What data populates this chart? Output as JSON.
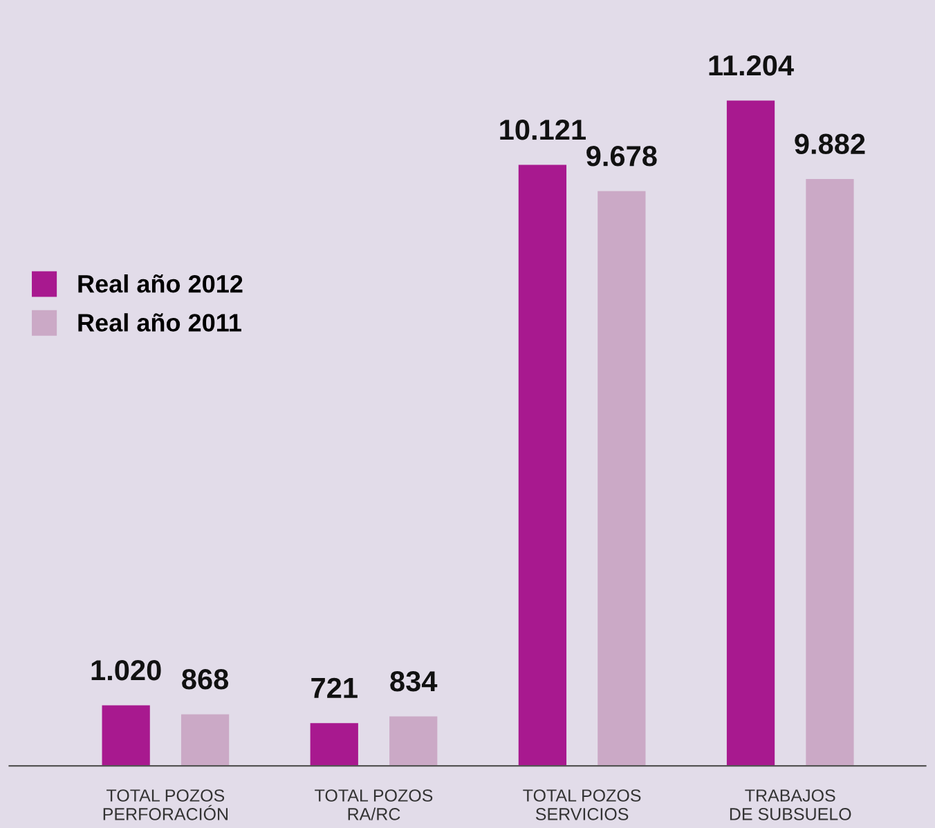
{
  "chart_data": {
    "type": "bar",
    "categories": [
      "TOTAL POZOS\nPERFORACIÓN",
      "TOTAL POZOS\nRA/RC",
      "TOTAL POZOS\nSERVICIOS",
      "TRABAJOS\nDE SUBSUELO"
    ],
    "series": [
      {
        "name": "Real año 2012",
        "color": "#a8198f",
        "values": [
          1020,
          721,
          10121,
          11204
        ],
        "value_labels": [
          "1.020",
          "721",
          "10.121",
          "11.204"
        ]
      },
      {
        "name": "Real año 2011",
        "color": "#cba9c6",
        "values": [
          868,
          834,
          9678,
          9882
        ],
        "value_labels": [
          "868",
          "834",
          "9.678",
          "9.882"
        ]
      }
    ],
    "legend": "left",
    "grid": false
  }
}
